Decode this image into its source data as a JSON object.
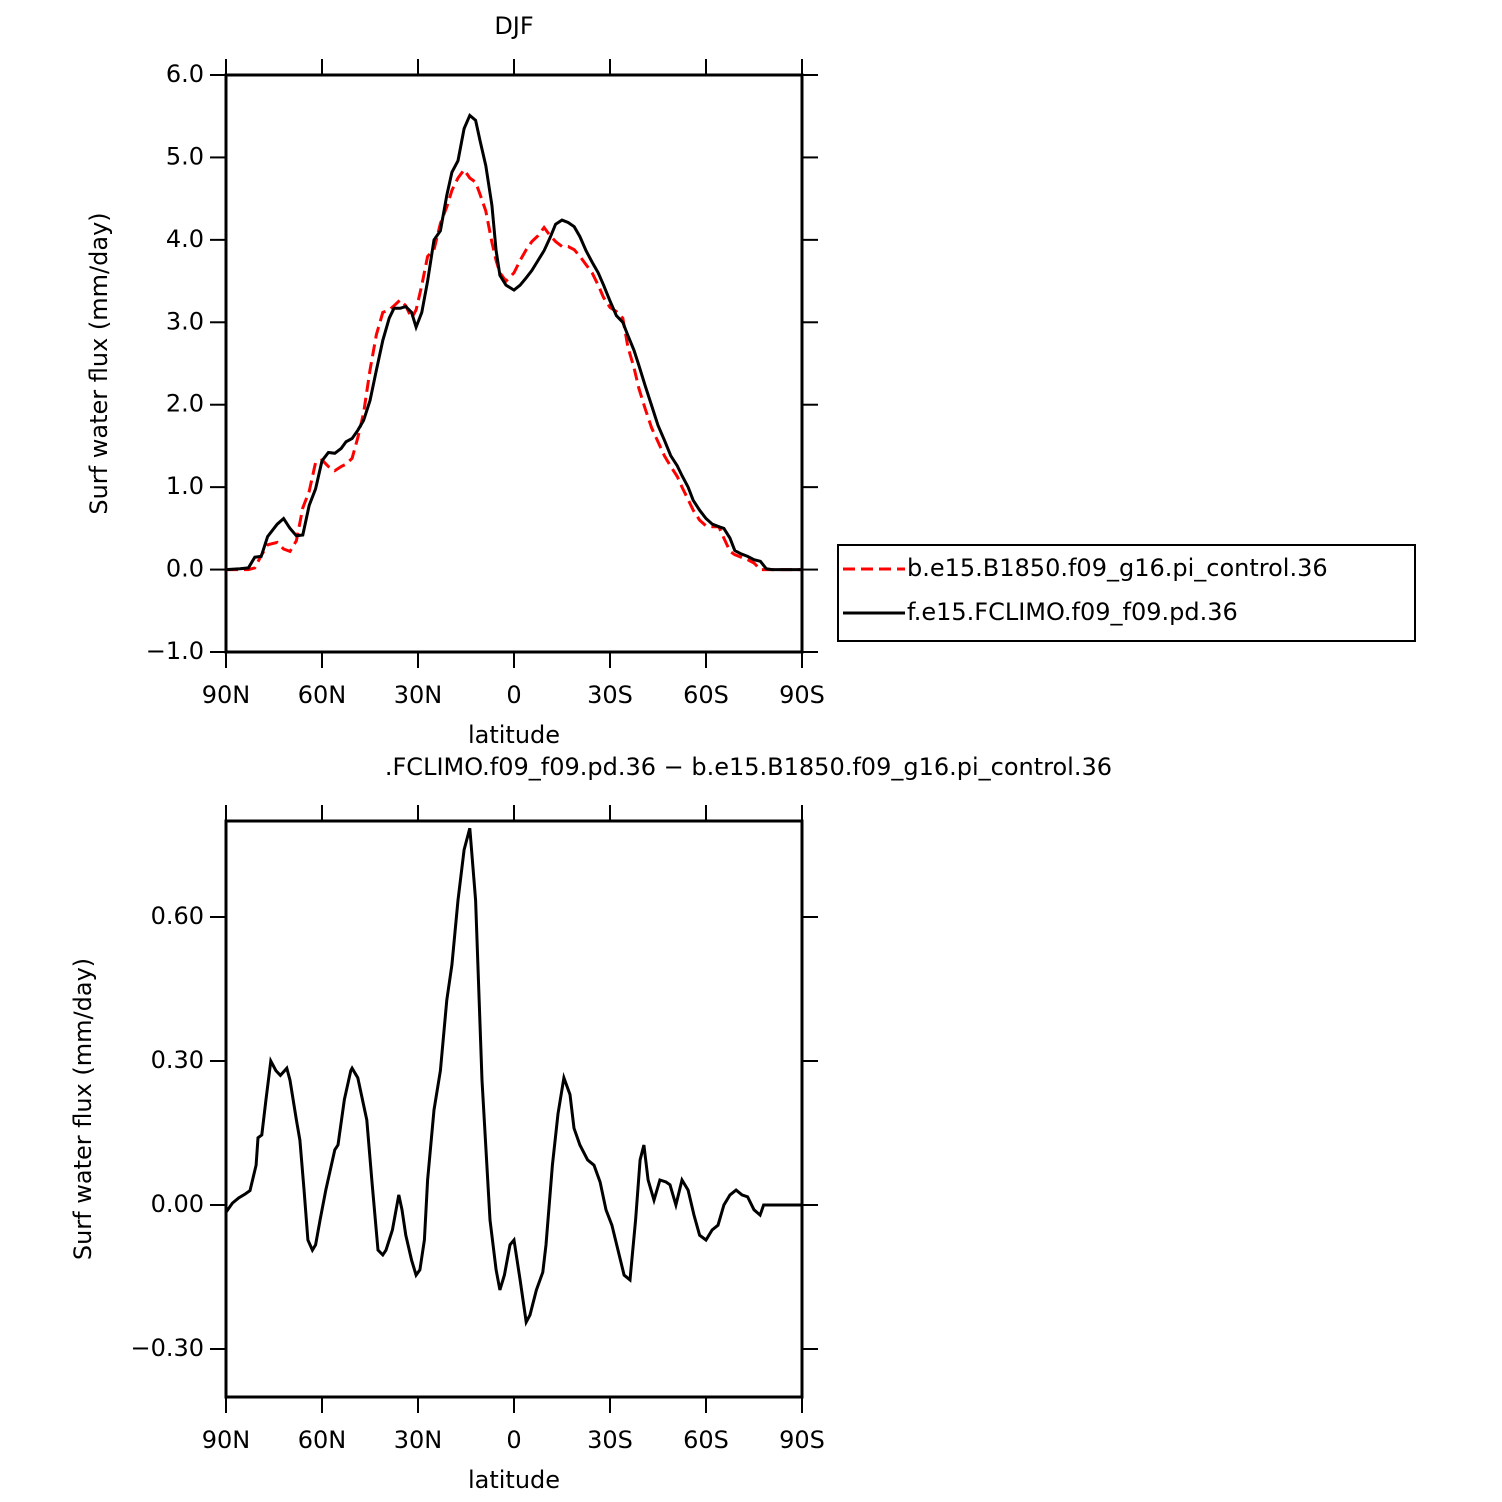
{
  "chart_data": [
    {
      "type": "line",
      "title": "DJF",
      "xlabel": "latitude",
      "ylabel": "Surf water flux (mm/day)",
      "xlim": [
        90,
        -90
      ],
      "ylim": [
        -1,
        6
      ],
      "xticks": [
        {
          "value": 90,
          "label": "90N"
        },
        {
          "value": 60,
          "label": "60N"
        },
        {
          "value": 30,
          "label": "30N"
        },
        0,
        {
          "value": -30,
          "label": "30S"
        },
        {
          "value": -60,
          "label": "60S"
        },
        {
          "value": -90,
          "label": "90S"
        }
      ],
      "yticks": [
        {
          "value": -1,
          "label": "−1.0"
        },
        {
          "value": 0,
          "label": "0.0"
        },
        {
          "value": 1,
          "label": "1.0"
        },
        {
          "value": 2,
          "label": "2.0"
        },
        {
          "value": 3,
          "label": "3.0"
        },
        {
          "value": 4,
          "label": "4.0"
        },
        {
          "value": 5,
          "label": "5.0"
        },
        {
          "value": 6,
          "label": "6.0"
        }
      ],
      "grid": false,
      "legend": "right",
      "x": [
        90,
        85.6,
        83,
        81,
        79,
        77,
        74,
        72,
        70,
        68,
        66,
        64,
        62,
        60,
        58,
        56,
        54,
        52.5,
        50.6,
        48.8,
        47,
        45,
        43,
        41,
        39,
        37.5,
        35.6,
        33.8,
        32,
        30.6,
        28.8,
        27,
        25,
        23,
        21,
        19.4,
        17.5,
        15.6,
        13.8,
        12,
        10.6,
        8.8,
        6.9,
        5.6,
        4.4,
        2.5,
        0,
        -1.9,
        -3.8,
        -5.6,
        -7.5,
        -9.4,
        -11.3,
        -13,
        -15,
        -16.9,
        -18.8,
        -20.6,
        -22.5,
        -24.4,
        -26.3,
        -28,
        -30,
        -32,
        -34,
        -35.6,
        -37.5,
        -39,
        -41,
        -43,
        -45,
        -47,
        -49,
        -51,
        -52.5,
        -54.4,
        -56,
        -58,
        -60,
        -62,
        -64,
        -65.6,
        -67.5,
        -69,
        -71,
        -73,
        -75,
        -77,
        -78.8,
        -80.6,
        -90
      ],
      "series": [
        {
          "name": "b.e15.B1850.f09_g16.pi_control.36",
          "color": "#ff0000",
          "style": "dashed",
          "values": [
            0,
            0,
            0,
            0.02,
            0.17,
            0.3,
            0.33,
            0.25,
            0.22,
            0.35,
            0.75,
            0.95,
            1.3,
            1.33,
            1.25,
            1.2,
            1.25,
            1.28,
            1.35,
            1.6,
            1.9,
            2.42,
            2.85,
            3.12,
            3.15,
            3.2,
            3.27,
            3.2,
            3.05,
            3.15,
            3.45,
            3.8,
            3.88,
            4.2,
            4.4,
            4.6,
            4.75,
            4.85,
            4.75,
            4.7,
            4.55,
            4.35,
            3.97,
            3.75,
            3.6,
            3.5,
            3.6,
            3.75,
            3.88,
            3.98,
            4.05,
            4.15,
            4.05,
            3.98,
            3.92,
            3.92,
            3.88,
            3.8,
            3.7,
            3.6,
            3.45,
            3.3,
            3.18,
            3.13,
            3.05,
            2.7,
            2.45,
            2.2,
            1.95,
            1.72,
            1.55,
            1.38,
            1.25,
            1.13,
            1.0,
            0.85,
            0.72,
            0.6,
            0.53,
            0.52,
            0.52,
            0.38,
            0.22,
            0.18,
            0.15,
            0.12,
            0.08,
            0,
            0,
            0,
            0
          ]
        },
        {
          "name": "f.e15.FCLIMO.f09_f09.pd.36",
          "color": "#000000",
          "style": "solid",
          "values": [
            0,
            0.01,
            0.02,
            0.15,
            0.16,
            0.4,
            0.55,
            0.62,
            0.5,
            0.41,
            0.42,
            0.78,
            0.98,
            1.32,
            1.42,
            1.41,
            1.47,
            1.55,
            1.59,
            1.69,
            1.81,
            2.05,
            2.42,
            2.78,
            3.05,
            3.17,
            3.17,
            3.19,
            3.12,
            2.94,
            3.12,
            3.5,
            4.0,
            4.11,
            4.54,
            4.82,
            4.96,
            5.35,
            5.51,
            5.45,
            5.2,
            4.9,
            4.42,
            3.87,
            3.57,
            3.45,
            3.39,
            3.45,
            3.54,
            3.63,
            3.75,
            3.87,
            4.03,
            4.19,
            4.24,
            4.21,
            4.16,
            4.04,
            3.87,
            3.73,
            3.6,
            3.45,
            3.26,
            3.08,
            3.0,
            2.84,
            2.66,
            2.48,
            2.23,
            1.99,
            1.75,
            1.57,
            1.38,
            1.26,
            1.14,
            1.0,
            0.84,
            0.72,
            0.62,
            0.55,
            0.52,
            0.5,
            0.38,
            0.23,
            0.19,
            0.16,
            0.12,
            0.1,
            0.01,
            0,
            0
          ]
        }
      ]
    },
    {
      "type": "line",
      "title": ".FCLIMO.f09_f09.pd.36 − b.e15.B1850.f09_g16.pi_control.36",
      "xlabel": "latitude",
      "ylabel": "Surf water flux (mm/day)",
      "xlim": [
        90,
        -90
      ],
      "ylim": [
        -0.4,
        0.8
      ],
      "xticks": [
        {
          "value": 90,
          "label": "90N"
        },
        {
          "value": 60,
          "label": "60N"
        },
        {
          "value": 30,
          "label": "30N"
        },
        0,
        {
          "value": -30,
          "label": "30S"
        },
        {
          "value": -60,
          "label": "60S"
        },
        {
          "value": -90,
          "label": "90S"
        }
      ],
      "yticks": [
        {
          "value": -0.3,
          "label": "−0.30"
        },
        {
          "value": 0,
          "label": "0.00"
        },
        {
          "value": 0.3,
          "label": "0.30"
        },
        {
          "value": 0.6,
          "label": "0.60"
        }
      ],
      "grid": false,
      "color": "#000000",
      "x": [
        90,
        88,
        86,
        84,
        82.5,
        80.6,
        80,
        78.8,
        77.5,
        76,
        74.4,
        73,
        71,
        70,
        68,
        66.9,
        65.6,
        64.4,
        63,
        62,
        60.6,
        58.8,
        56,
        55,
        53,
        51,
        50.6,
        48.8,
        46,
        44.4,
        42.5,
        41,
        40,
        38,
        36,
        35,
        33.8,
        32,
        30.6,
        29.4,
        28,
        27,
        25,
        23,
        21,
        19.4,
        17.5,
        15.6,
        13.8,
        12,
        10,
        7.5,
        5.6,
        4.4,
        3,
        1.25,
        0,
        -1.9,
        -3.8,
        -5,
        -7,
        -9,
        -10,
        -12,
        -13.75,
        -15.6,
        -17.5,
        -18.75,
        -20.6,
        -23,
        -25,
        -26.9,
        -28.75,
        -30.6,
        -32.5,
        -34.4,
        -36.25,
        -38,
        -39.4,
        -40.6,
        -41.9,
        -43.75,
        -45.6,
        -47.5,
        -48.75,
        -50.6,
        -52.5,
        -54.4,
        -56.25,
        -58,
        -60,
        -61.9,
        -63.75,
        -65.6,
        -67.5,
        -69.4,
        -71.25,
        -73,
        -75,
        -76.9,
        -78,
        -83,
        -90
      ],
      "values": [
        -0.015,
        0.004,
        0.015,
        0.023,
        0.03,
        0.083,
        0.14,
        0.146,
        0.22,
        0.3,
        0.28,
        0.27,
        0.285,
        0.26,
        0.177,
        0.135,
        0.03,
        -0.073,
        -0.094,
        -0.083,
        -0.031,
        0.031,
        0.115,
        0.125,
        0.22,
        0.28,
        0.285,
        0.265,
        0.177,
        0.05,
        -0.094,
        -0.104,
        -0.094,
        -0.052,
        0.021,
        -0.01,
        -0.063,
        -0.115,
        -0.146,
        -0.135,
        -0.073,
        0.052,
        0.198,
        0.28,
        0.427,
        0.5,
        0.635,
        0.74,
        0.785,
        0.635,
        0.26,
        -0.031,
        -0.135,
        -0.177,
        -0.146,
        -0.083,
        -0.073,
        -0.156,
        -0.244,
        -0.229,
        -0.177,
        -0.14,
        -0.083,
        0.083,
        0.19,
        0.265,
        0.23,
        0.16,
        0.125,
        0.094,
        0.083,
        0.048,
        -0.01,
        -0.042,
        -0.094,
        -0.146,
        -0.156,
        -0.031,
        0.094,
        0.125,
        0.052,
        0.01,
        0.052,
        0.048,
        0.042,
        0,
        0.052,
        0.031,
        -0.021,
        -0.063,
        -0.073,
        -0.052,
        -0.042,
        0,
        0.021,
        0.031,
        0.021,
        0.017,
        -0.01,
        -0.021,
        0,
        0,
        0
      ]
    }
  ]
}
